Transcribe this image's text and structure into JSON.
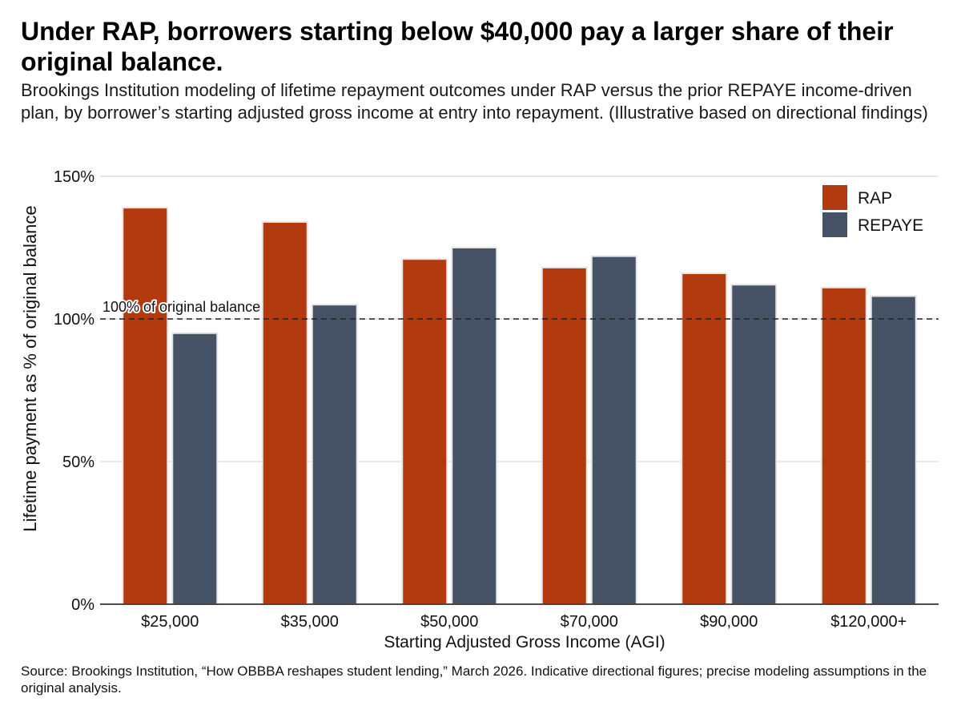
{
  "header": {
    "title": "Under RAP, borrowers starting below $40,000 pay a larger share of their original balance.",
    "subtitle": "Brookings Institution modeling of lifetime repayment outcomes under RAP versus the prior REPAYE income-driven plan, by borrower’s starting adjusted gross income at entry into repayment. (Illustrative based on directional findings)"
  },
  "footer": {
    "source": "Source: Brookings Institution, “How OBBBA reshapes student lending,” March 2026. Indicative directional figures; precise modeling assumptions in the original analysis."
  },
  "chart_data": {
    "type": "bar",
    "title": "Under RAP, borrowers starting below $40,000 pay a larger share of their original balance.",
    "xlabel": "Starting Adjusted Gross Income (AGI)",
    "ylabel": "Lifetime payment as % of original balance",
    "ylim": [
      0,
      150
    ],
    "yticks": [
      0,
      50,
      100,
      150
    ],
    "ytick_labels": [
      "0%",
      "50%",
      "100%",
      "150%"
    ],
    "grid": true,
    "legend_position": "top-right",
    "categories": [
      "$25,000",
      "$35,000",
      "$50,000",
      "$70,000",
      "$90,000",
      "$120,000+"
    ],
    "series": [
      {
        "name": "RAP",
        "color": "#b33a0e",
        "values": [
          139,
          134,
          121,
          118,
          116,
          111
        ]
      },
      {
        "name": "REPAYE",
        "color": "#465366",
        "values": [
          95,
          105,
          125,
          122,
          112,
          108
        ]
      }
    ],
    "reference_line": {
      "value": 100,
      "label": "100% of original balance"
    }
  }
}
